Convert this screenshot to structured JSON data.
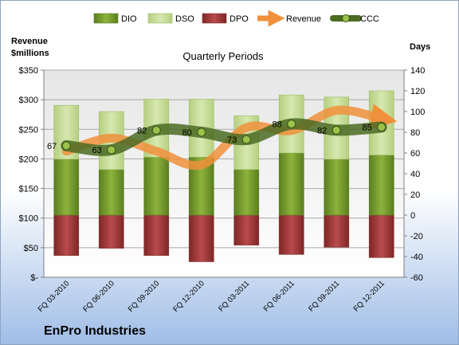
{
  "chart_data": {
    "type": "bar",
    "title": "Quarterly Periods",
    "company": "EnPro Industries",
    "left_axis_title_line1": "Revenue",
    "left_axis_title_line2": "$millions",
    "right_axis_title": "Days",
    "categories": [
      "FQ 03-2010",
      "FQ 06-2010",
      "FQ 09-2010",
      "FQ 12-2010",
      "FQ 03-2011",
      "FQ 06-2011",
      "FQ 09-2011",
      "FQ 12-2011"
    ],
    "left_ylim": [
      0,
      350
    ],
    "left_ticks": [
      "$-",
      "$50",
      "$100",
      "$150",
      "$200",
      "$250",
      "$300",
      "$350"
    ],
    "right_ylim": [
      -60,
      140
    ],
    "right_ticks": [
      "-60",
      "-40",
      "-20",
      "0",
      "20",
      "40",
      "60",
      "80",
      "100",
      "120",
      "140"
    ],
    "legend": [
      "DIO",
      "DSO",
      "DPO",
      "Revenue",
      "CCC"
    ],
    "series": [
      {
        "name": "DIO",
        "axis": "right",
        "values": [
          54,
          44,
          56,
          56,
          44,
          60,
          54,
          58
        ]
      },
      {
        "name": "DSO",
        "axis": "right",
        "values": [
          52,
          56,
          56,
          56,
          52,
          56,
          60,
          62
        ]
      },
      {
        "name": "DPO",
        "axis": "right",
        "values": [
          -39,
          -32,
          -39,
          -45,
          -29,
          -38,
          -31,
          -41
        ]
      },
      {
        "name": "Revenue",
        "axis": "left",
        "values": [
          213,
          235,
          213,
          190,
          253,
          248,
          282,
          268
        ]
      },
      {
        "name": "CCC",
        "axis": "right",
        "values": [
          67,
          63,
          82,
          80,
          73,
          88,
          82,
          85
        ]
      }
    ],
    "ccc_labels": [
      "67",
      "63",
      "82",
      "80",
      "73",
      "88",
      "82",
      "85"
    ],
    "colors": {
      "dio": "#8db33c",
      "dio_dark": "#5a7f1f",
      "dso": "#d7e8b0",
      "dso_dark": "#b5cf80",
      "dpo": "#b84b4b",
      "dpo_dark": "#7f2626",
      "revenue": "#f0903c",
      "ccc": "#4b6b23",
      "bg_top": "#ffffff",
      "bg_bottom": "#9fbde6",
      "plot_top": "#e6e6e6",
      "plot_bottom": "#ffffff"
    },
    "grid": true,
    "legend_position": "top"
  }
}
